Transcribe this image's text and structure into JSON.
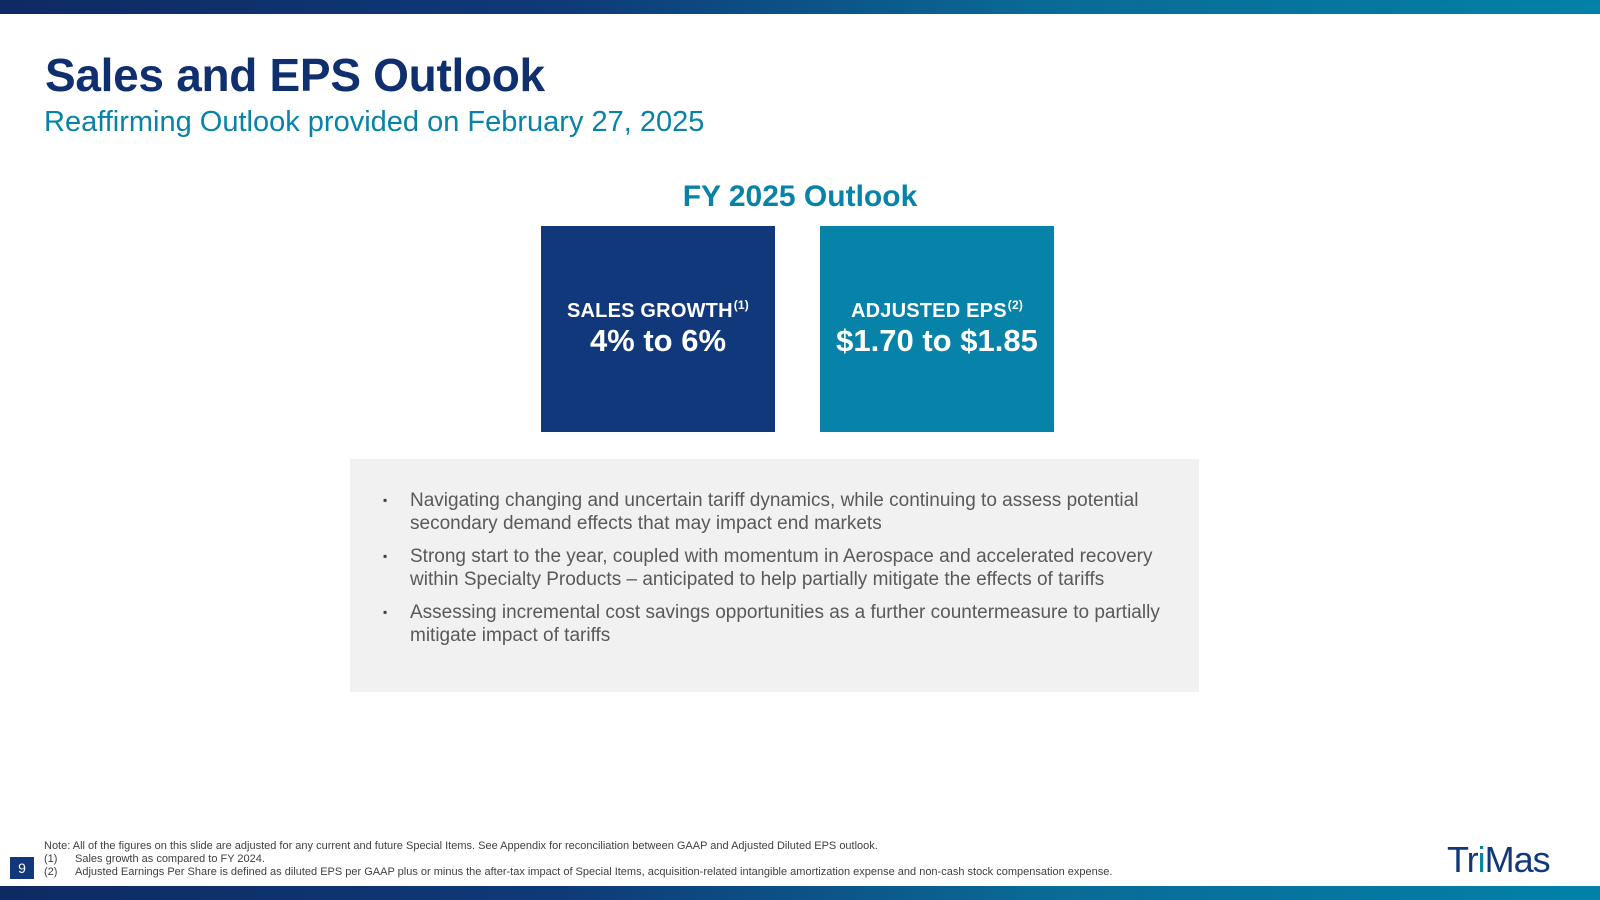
{
  "slide": {
    "title": "Sales and EPS Outlook",
    "subtitle": "Reaffirming Outlook provided on February 27, 2025",
    "page_number": "9"
  },
  "outlook": {
    "heading": "FY 2025 Outlook",
    "sales_growth": {
      "label": "SALES GROWTH",
      "footnote_ref": "(1)",
      "value": "4% to 6%",
      "color": "#10387b"
    },
    "adjusted_eps": {
      "label": "ADJUSTED EPS",
      "footnote_ref": "(2)",
      "value": "$1.70 to $1.85",
      "color": "#0782a8"
    }
  },
  "bullets": [
    "Navigating changing and uncertain tariff dynamics, while continuing to assess potential secondary demand effects that may impact end markets",
    "Strong start to the year, coupled with momentum in Aerospace and accelerated recovery within Specialty Products – anticipated to help partially mitigate the effects of tariffs",
    "Assessing incremental cost savings opportunities as a further countermeasure to partially mitigate impact of tariffs"
  ],
  "bullet_marker": "▪",
  "footnotes": {
    "note": "Note: All of the figures on this slide are adjusted for any current and future Special Items. See Appendix for reconciliation between GAAP and Adjusted Diluted EPS outlook.",
    "items": [
      {
        "num": "(1)",
        "text": "Sales growth as compared to FY 2024."
      },
      {
        "num": "(2)",
        "text": "Adjusted Earnings Per Share is defined as diluted EPS per GAAP plus or minus the after-tax impact of Special Items, acquisition-related intangible amortization expense and non-cash stock compensation expense."
      }
    ]
  },
  "logo": {
    "text_a": "Tr",
    "text_b": "i",
    "text_c": "Mas"
  },
  "colors": {
    "brand_navy": "#10387b",
    "brand_teal": "#0782a8",
    "panel_gray": "#f1f1f1"
  }
}
